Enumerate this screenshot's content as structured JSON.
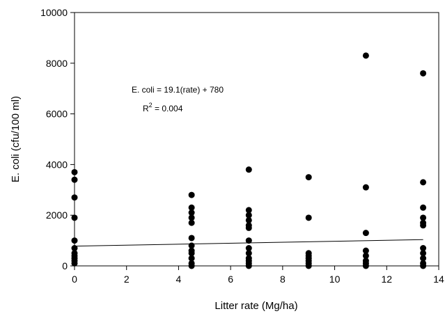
{
  "chart_data": {
    "type": "scatter",
    "x_label": "Litter rate (Mg/ha)",
    "y_label": "E. coli (cfu/100 ml)",
    "xlim": [
      0,
      14
    ],
    "xticks": [
      0,
      2,
      4,
      6,
      8,
      10,
      12,
      14
    ],
    "ylim": [
      0,
      10000
    ],
    "yticks": [
      0,
      2000,
      4000,
      6000,
      8000,
      10000
    ],
    "series": [
      {
        "color": "#000000",
        "x": [
          0,
          0,
          0,
          0,
          0,
          0,
          0,
          0,
          0,
          0,
          0,
          4.5,
          4.5,
          4.5,
          4.5,
          4.5,
          4.5,
          4.5,
          4.5,
          4.5,
          4.5,
          4.5,
          4.5,
          6.7,
          6.7,
          6.7,
          6.7,
          6.7,
          6.7,
          6.7,
          6.7,
          6.7,
          6.7,
          6.7,
          6.7,
          6.7,
          9,
          9,
          9,
          9,
          9,
          9,
          9,
          9,
          11.2,
          11.2,
          11.2,
          11.2,
          11.2,
          11.2,
          11.2,
          11.2,
          13.4,
          13.4,
          13.4,
          13.4,
          13.4,
          13.4,
          13.4,
          13.4,
          13.4,
          13.4,
          13.4
        ],
        "values": [
          3700,
          3400,
          2700,
          1900,
          1000,
          700,
          500,
          400,
          300,
          200,
          100,
          2800,
          2300,
          2100,
          1900,
          1700,
          1100,
          800,
          600,
          500,
          300,
          100,
          0,
          3800,
          2200,
          2000,
          1800,
          1600,
          1500,
          1000,
          700,
          500,
          300,
          200,
          100,
          0,
          3500,
          1900,
          500,
          400,
          300,
          200,
          100,
          0,
          8300,
          3100,
          1300,
          600,
          400,
          200,
          100,
          0,
          7600,
          3300,
          2300,
          1900,
          1700,
          1600,
          700,
          500,
          300,
          100,
          0
        ]
      }
    ],
    "trend_line": {
      "color": "#000000",
      "x": [
        0,
        13.4
      ],
      "values": [
        780,
        1036
      ]
    },
    "equation": "E. coli = 19.1(rate) + 780",
    "r_squared": {
      "symbol": "R",
      "superscript": "2",
      "text": " = 0.004"
    }
  }
}
